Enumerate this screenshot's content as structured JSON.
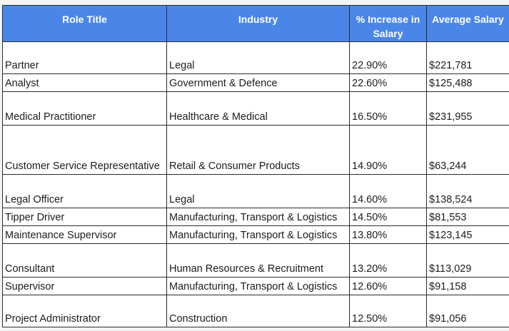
{
  "table": {
    "headers": {
      "role": "Role Title",
      "industry": "Industry",
      "increase": "% Increase in Salary",
      "salary": "Average Salary"
    },
    "rows": [
      {
        "role": "Partner",
        "industry": "Legal",
        "increase": "22.90%",
        "salary": "$221,781"
      },
      {
        "role": "Analyst",
        "industry": "Government & Defence",
        "increase": "22.60%",
        "salary": "$125,488"
      },
      {
        "role": "Medical Practitioner",
        "industry": "Healthcare & Medical",
        "increase": "16.50%",
        "salary": "$231,955"
      },
      {
        "role": "Customer Service Representative",
        "industry": "Retail & Consumer Products",
        "increase": "14.90%",
        "salary": "$63,244"
      },
      {
        "role": "Legal Officer",
        "industry": "Legal",
        "increase": "14.60%",
        "salary": "$138,524"
      },
      {
        "role": "Tipper Driver",
        "industry": "Manufacturing, Transport & Logistics",
        "increase": "14.50%",
        "salary": "$81,553"
      },
      {
        "role": "Maintenance Supervisor",
        "industry": "Manufacturing, Transport & Logistics",
        "increase": "13.80%",
        "salary": "$123,145"
      },
      {
        "role": "Consultant",
        "industry": "Human Resources & Recruitment",
        "increase": "13.20%",
        "salary": "$113,029"
      },
      {
        "role": "Supervisor",
        "industry": "Manufacturing, Transport & Logistics",
        "increase": "12.60%",
        "salary": "$91,158"
      },
      {
        "role": "Project Administrator",
        "industry": "Construction",
        "increase": "12.50%",
        "salary": "$91,056"
      }
    ]
  },
  "colors": {
    "header_bg": "#4a86e8",
    "header_text": "#ffffff"
  }
}
